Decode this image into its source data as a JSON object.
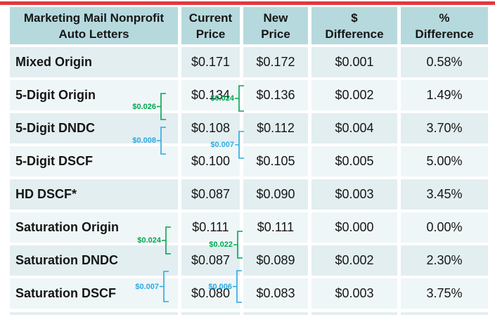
{
  "colors": {
    "accent_red": "#E0393F",
    "header_teal": "#B6D9DD",
    "row_odd": "#E3EEF1",
    "row_even": "#EFF6F7",
    "ink": "#161616",
    "green": "#00A651",
    "blue": "#29A9E1"
  },
  "table": {
    "header_display": {
      "col0": "Marketing Mail Nonprofit\nAuto Letters",
      "col1": "Current\nPrice",
      "col2": "New\nPrice",
      "col3": "$\nDifference",
      "col4": "%\nDifference"
    },
    "rows": [
      {
        "label": "Mixed Origin",
        "current": "$0.171",
        "new": "$0.172",
        "dollar_diff": "$0.001",
        "pct_diff": "0.58%"
      },
      {
        "label": "5-Digit Origin",
        "current": "$0.134",
        "new": "$0.136",
        "dollar_diff": "$0.002",
        "pct_diff": "1.49%"
      },
      {
        "label": "5-Digit DNDC",
        "current": "$0.108",
        "new": "$0.112",
        "dollar_diff": "$0.004",
        "pct_diff": "3.70%"
      },
      {
        "label": "5-Digit DSCF",
        "current": "$0.100",
        "new": "$0.105",
        "dollar_diff": "$0.005",
        "pct_diff": "5.00%"
      },
      {
        "label": "HD DSCF*",
        "current": "$0.087",
        "new": "$0.090",
        "dollar_diff": "$0.003",
        "pct_diff": "3.45%"
      },
      {
        "label": "Saturation Origin",
        "current": "$0.111",
        "new": "$0.111",
        "dollar_diff": "$0.000",
        "pct_diff": "0.00%"
      },
      {
        "label": "Saturation DNDC",
        "current": "$0.087",
        "new": "$0.089",
        "dollar_diff": "$0.002",
        "pct_diff": "2.30%"
      },
      {
        "label": "Saturation DSCF",
        "current": "$0.080",
        "new": "$0.083",
        "dollar_diff": "$0.003",
        "pct_diff": "3.75%"
      }
    ]
  },
  "brackets": [
    {
      "label": "$0.026",
      "color": "green",
      "side": "current_price",
      "from_row": "5-Digit Origin",
      "to_row": "5-Digit DNDC"
    },
    {
      "label": "$0.008",
      "color": "blue",
      "side": "current_price",
      "from_row": "5-Digit DNDC",
      "to_row": "5-Digit DSCF"
    },
    {
      "label": "$0.024",
      "color": "green",
      "side": "current_price",
      "from_row": "Saturation Origin",
      "to_row": "Saturation DNDC"
    },
    {
      "label": "$0.007",
      "color": "blue",
      "side": "current_price",
      "from_row": "Saturation DNDC",
      "to_row": "Saturation DSCF"
    },
    {
      "label": "$0.024",
      "color": "green",
      "side": "new_price",
      "from_row": "5-Digit Origin",
      "to_row": "5-Digit DNDC"
    },
    {
      "label": "$0.007",
      "color": "blue",
      "side": "new_price",
      "from_row": "5-Digit DNDC",
      "to_row": "5-Digit DSCF"
    },
    {
      "label": "$0.022",
      "color": "green",
      "side": "new_price",
      "from_row": "Saturation Origin",
      "to_row": "Saturation DNDC"
    },
    {
      "label": "$0.006",
      "color": "blue",
      "side": "new_price",
      "from_row": "Saturation DNDC",
      "to_row": "Saturation DSCF"
    }
  ],
  "chart_data": {
    "type": "table",
    "title": "Marketing Mail Nonprofit Auto Letters",
    "columns": [
      "Marketing Mail Nonprofit Auto Letters",
      "Current Price",
      "New Price",
      "$ Difference",
      "% Difference"
    ],
    "rows": [
      [
        "Mixed Origin",
        0.171,
        0.172,
        0.001,
        "0.58%"
      ],
      [
        "5-Digit Origin",
        0.134,
        0.136,
        0.002,
        "1.49%"
      ],
      [
        "5-Digit DNDC",
        0.108,
        0.112,
        0.004,
        "3.70%"
      ],
      [
        "5-Digit DSCF",
        0.1,
        0.105,
        0.005,
        "5.00%"
      ],
      [
        "HD DSCF*",
        0.087,
        0.09,
        0.003,
        "3.45%"
      ],
      [
        "Saturation Origin",
        0.111,
        0.111,
        0.0,
        "0.00%"
      ],
      [
        "Saturation DNDC",
        0.087,
        0.089,
        0.002,
        "2.30%"
      ],
      [
        "Saturation DSCF",
        0.08,
        0.083,
        0.003,
        "3.75%"
      ]
    ],
    "annotations": [
      {
        "text": "$0.026",
        "color": "green",
        "meaning": "current price gap 5-Digit Origin vs 5-Digit DNDC"
      },
      {
        "text": "$0.008",
        "color": "blue",
        "meaning": "current price gap 5-Digit DNDC vs 5-Digit DSCF"
      },
      {
        "text": "$0.024",
        "color": "green",
        "meaning": "current price gap Saturation Origin vs Saturation DNDC"
      },
      {
        "text": "$0.007",
        "color": "blue",
        "meaning": "current price gap Saturation DNDC vs Saturation DSCF"
      },
      {
        "text": "$0.024",
        "color": "green",
        "meaning": "new price gap 5-Digit Origin vs 5-Digit DNDC"
      },
      {
        "text": "$0.007",
        "color": "blue",
        "meaning": "new price gap 5-Digit DNDC vs 5-Digit DSCF"
      },
      {
        "text": "$0.022",
        "color": "green",
        "meaning": "new price gap Saturation Origin vs Saturation DNDC"
      },
      {
        "text": "$0.006",
        "color": "blue",
        "meaning": "new price gap Saturation DNDC vs Saturation DSCF"
      }
    ]
  }
}
